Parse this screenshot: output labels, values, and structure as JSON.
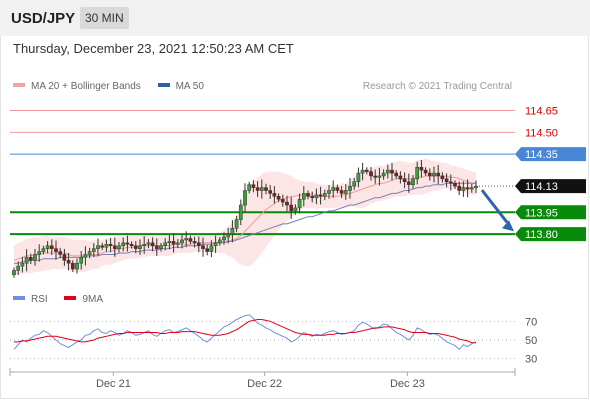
{
  "header": {
    "symbol": "USD/JPY",
    "timeframe": "30 MIN"
  },
  "datetime": "Thursday, December 23, 2021 12:50:23 AM CET",
  "credit": "Research © 2021 Trading Central",
  "legend": [
    {
      "label": "MA 20 + Bollinger Bands",
      "color": "#f4a3a3"
    },
    {
      "label": "MA 50",
      "color": "#2e5fa3"
    }
  ],
  "rsi_legend": [
    {
      "label": "RSI",
      "color": "#6f8fe0"
    },
    {
      "label": "9MA",
      "color": "#e0001b"
    }
  ],
  "colors": {
    "red_level": "#e00000",
    "blue_level": "#4a86d8",
    "green_level": "#0a8a0a",
    "arrow": "#2e64a8",
    "bull": "#3aa13a",
    "bear": "#8b1a1a"
  },
  "chart_data": [
    {
      "type": "candlestick",
      "title": "USD/JPY",
      "timeframe": "30 MIN",
      "ylim": [
        113.45,
        114.75
      ],
      "x_tick_labels": [
        "Dec 21",
        "Dec 22",
        "Dec 23"
      ],
      "levels": [
        {
          "label": "114.65",
          "value": 114.65,
          "style": "resistance",
          "color": "#e00000"
        },
        {
          "label": "114.50",
          "value": 114.5,
          "style": "resistance",
          "color": "#e00000"
        },
        {
          "label": "114.35",
          "value": 114.35,
          "style": "pivot",
          "color": "#4a86d8"
        },
        {
          "label": "114.13",
          "value": 114.13,
          "style": "last-price",
          "color": "#000000"
        },
        {
          "label": "113.95",
          "value": 113.95,
          "style": "target",
          "color": "#0a8a0a"
        },
        {
          "label": "113.80",
          "value": 113.8,
          "style": "target",
          "color": "#0a8a0a"
        }
      ],
      "closes": [
        113.55,
        113.58,
        113.6,
        113.64,
        113.62,
        113.66,
        113.68,
        113.7,
        113.72,
        113.7,
        113.68,
        113.66,
        113.62,
        113.6,
        113.56,
        113.6,
        113.64,
        113.66,
        113.68,
        113.7,
        113.72,
        113.71,
        113.73,
        113.72,
        113.7,
        113.72,
        113.74,
        113.73,
        113.72,
        113.7,
        113.72,
        113.73,
        113.74,
        113.72,
        113.7,
        113.72,
        113.74,
        113.75,
        113.73,
        113.74,
        113.76,
        113.77,
        113.75,
        113.74,
        113.72,
        113.7,
        113.68,
        113.72,
        113.74,
        113.76,
        113.78,
        113.8,
        113.84,
        113.9,
        114.0,
        114.1,
        114.14,
        114.12,
        114.1,
        114.12,
        114.1,
        114.08,
        114.06,
        114.04,
        114.02,
        114.0,
        113.96,
        113.98,
        114.04,
        114.08,
        114.06,
        114.05,
        114.07,
        114.06,
        114.08,
        114.1,
        114.12,
        114.1,
        114.08,
        114.1,
        114.13,
        114.16,
        114.22,
        114.24,
        114.23,
        114.2,
        114.19,
        114.2,
        114.22,
        114.24,
        114.22,
        114.2,
        114.18,
        114.16,
        114.14,
        114.18,
        114.26,
        114.24,
        114.22,
        114.2,
        114.22,
        114.2,
        114.18,
        114.16,
        114.15,
        114.13,
        114.1,
        114.12,
        114.11,
        114.12,
        114.13
      ],
      "ma20": [
        113.62,
        113.63,
        113.64,
        113.65,
        113.65,
        113.66,
        113.66,
        113.67,
        113.67,
        113.67,
        113.67,
        113.67,
        113.67,
        113.66,
        113.65,
        113.65,
        113.65,
        113.65,
        113.65,
        113.66,
        113.66,
        113.67,
        113.68,
        113.68,
        113.69,
        113.7,
        113.7,
        113.71,
        113.71,
        113.71,
        113.72,
        113.72,
        113.72,
        113.72,
        113.72,
        113.72,
        113.72,
        113.72,
        113.73,
        113.73,
        113.73,
        113.73,
        113.73,
        113.74,
        113.74,
        113.74,
        113.74,
        113.74,
        113.74,
        113.74,
        113.75,
        113.75,
        113.76,
        113.77,
        113.79,
        113.82,
        113.85,
        113.88,
        113.91,
        113.94,
        113.97,
        113.99,
        114.01,
        114.03,
        114.04,
        114.05,
        114.06,
        114.06,
        114.07,
        114.07,
        114.07,
        114.07,
        114.06,
        114.06,
        114.06,
        114.06,
        114.06,
        114.06,
        114.07,
        114.07,
        114.08,
        114.09,
        114.1,
        114.11,
        114.12,
        114.13,
        114.14,
        114.15,
        114.15,
        114.16,
        114.17,
        114.18,
        114.18,
        114.18,
        114.18,
        114.18,
        114.19,
        114.19,
        114.2,
        114.2,
        114.2,
        114.2,
        114.2,
        114.2,
        114.19,
        114.19,
        114.18,
        114.17,
        114.16,
        114.15,
        114.15
      ],
      "ma50": [
        113.6,
        113.6,
        113.61,
        113.61,
        113.62,
        113.62,
        113.62,
        113.63,
        113.63,
        113.63,
        113.63,
        113.64,
        113.64,
        113.64,
        113.64,
        113.64,
        113.64,
        113.65,
        113.65,
        113.65,
        113.65,
        113.66,
        113.66,
        113.66,
        113.66,
        113.67,
        113.67,
        113.67,
        113.68,
        113.68,
        113.68,
        113.69,
        113.69,
        113.69,
        113.69,
        113.7,
        113.7,
        113.7,
        113.71,
        113.71,
        113.71,
        113.72,
        113.72,
        113.72,
        113.72,
        113.73,
        113.73,
        113.73,
        113.74,
        113.74,
        113.74,
        113.75,
        113.75,
        113.76,
        113.77,
        113.78,
        113.79,
        113.8,
        113.81,
        113.82,
        113.83,
        113.84,
        113.85,
        113.86,
        113.87,
        113.87,
        113.88,
        113.89,
        113.9,
        113.91,
        113.92,
        113.92,
        113.93,
        113.94,
        113.95,
        113.96,
        113.96,
        113.97,
        113.98,
        113.99,
        114.0,
        114.0,
        114.01,
        114.02,
        114.03,
        114.04,
        114.05,
        114.05,
        114.06,
        114.07,
        114.08,
        114.08,
        114.09,
        114.1,
        114.1,
        114.11,
        114.12,
        114.12,
        114.13,
        114.13,
        114.14,
        114.14,
        114.14,
        114.15,
        114.15,
        114.15,
        114.15,
        114.15,
        114.15,
        114.15,
        114.15
      ],
      "bb_width": [
        0.1,
        0.11,
        0.11,
        0.12,
        0.12,
        0.12,
        0.12,
        0.12,
        0.12,
        0.11,
        0.11,
        0.11,
        0.11,
        0.11,
        0.11,
        0.11,
        0.11,
        0.11,
        0.1,
        0.1,
        0.1,
        0.09,
        0.09,
        0.09,
        0.09,
        0.09,
        0.08,
        0.08,
        0.08,
        0.08,
        0.08,
        0.08,
        0.07,
        0.07,
        0.07,
        0.07,
        0.07,
        0.07,
        0.07,
        0.06,
        0.06,
        0.06,
        0.06,
        0.06,
        0.06,
        0.06,
        0.06,
        0.06,
        0.06,
        0.07,
        0.08,
        0.1,
        0.12,
        0.16,
        0.2,
        0.24,
        0.27,
        0.28,
        0.28,
        0.27,
        0.26,
        0.24,
        0.22,
        0.2,
        0.18,
        0.16,
        0.14,
        0.12,
        0.1,
        0.09,
        0.09,
        0.09,
        0.09,
        0.08,
        0.08,
        0.08,
        0.08,
        0.08,
        0.08,
        0.08,
        0.09,
        0.1,
        0.12,
        0.13,
        0.13,
        0.12,
        0.12,
        0.12,
        0.12,
        0.12,
        0.12,
        0.12,
        0.12,
        0.12,
        0.11,
        0.11,
        0.12,
        0.12,
        0.12,
        0.11,
        0.1,
        0.1,
        0.09,
        0.09,
        0.08,
        0.08,
        0.08,
        0.08,
        0.08,
        0.08,
        0.08
      ],
      "forecast_arrow": {
        "from": 114.13,
        "to": 113.95
      }
    },
    {
      "type": "line",
      "title": "RSI",
      "ylim": [
        20,
        80
      ],
      "y_tick_labels": [
        "70",
        "50",
        "30"
      ],
      "x_tick_labels": [
        "Dec 21",
        "Dec 22",
        "Dec 23"
      ],
      "series": [
        {
          "name": "RSI",
          "color": "#6f8fe0",
          "values": [
            40,
            45,
            50,
            48,
            52,
            55,
            56,
            60,
            58,
            54,
            50,
            46,
            44,
            42,
            45,
            48,
            50,
            55,
            56,
            60,
            62,
            58,
            57,
            60,
            58,
            55,
            57,
            60,
            58,
            55,
            56,
            58,
            60,
            56,
            54,
            57,
            60,
            61,
            58,
            59,
            61,
            63,
            60,
            57,
            54,
            50,
            48,
            52,
            56,
            60,
            64,
            66,
            69,
            72,
            74,
            76,
            77,
            73,
            68,
            66,
            63,
            61,
            58,
            56,
            54,
            52,
            48,
            50,
            54,
            58,
            56,
            54,
            56,
            55,
            57,
            59,
            60,
            58,
            56,
            57,
            58,
            60,
            66,
            69,
            67,
            64,
            62,
            64,
            67,
            66,
            62,
            58,
            56,
            53,
            50,
            55,
            63,
            61,
            58,
            56,
            57,
            55,
            52,
            48,
            46,
            44,
            40,
            45,
            43,
            46,
            48
          ]
        },
        {
          "name": "9MA",
          "color": "#e0001b",
          "values": [
            48,
            48,
            49,
            49,
            50,
            51,
            52,
            53,
            54,
            54,
            54,
            53,
            52,
            51,
            50,
            49,
            48,
            48,
            49,
            50,
            52,
            53,
            54,
            55,
            56,
            57,
            57,
            58,
            58,
            58,
            58,
            58,
            58,
            58,
            58,
            57,
            57,
            58,
            58,
            58,
            59,
            59,
            59,
            59,
            58,
            57,
            56,
            55,
            55,
            55,
            56,
            57,
            59,
            61,
            64,
            67,
            70,
            71,
            72,
            72,
            71,
            70,
            68,
            66,
            64,
            62,
            60,
            58,
            57,
            56,
            56,
            55,
            55,
            55,
            55,
            56,
            56,
            57,
            57,
            57,
            58,
            58,
            59,
            60,
            61,
            62,
            63,
            63,
            64,
            64,
            64,
            63,
            62,
            61,
            59,
            58,
            58,
            58,
            58,
            57,
            57,
            57,
            56,
            55,
            54,
            53,
            51,
            50,
            49,
            47,
            47
          ]
        }
      ]
    }
  ]
}
